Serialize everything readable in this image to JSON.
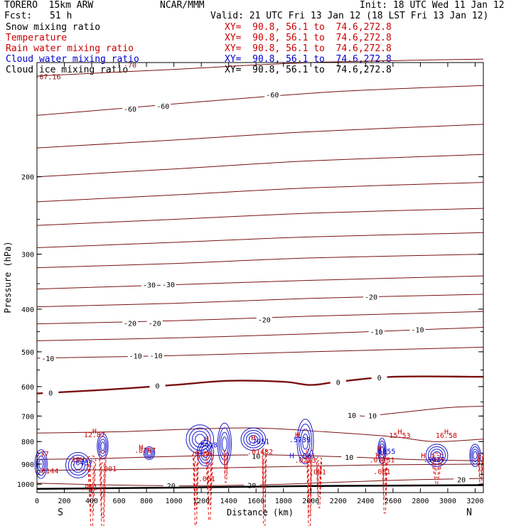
{
  "header": {
    "model": "TORERO  15km ARW",
    "center": "NCAR/MMM",
    "init": "Init: 18 UTC Wed 11 Jan 12",
    "fcst_label": "Fcst:",
    "fcst_value": "51 h",
    "valid": "Valid: 21 UTC Fri 13 Jan 12 (18 LST Fri 13 Jan 12)"
  },
  "legend": [
    {
      "name": "Snow mixing ratio",
      "xy": "XY=  90.8, 56.1 to  74.6,272.8",
      "color": "#000000"
    },
    {
      "name": "Temperature",
      "xy": "XY=  90.8, 56.1 to  74.6,272.8",
      "color": "#cc0000"
    },
    {
      "name": "Rain water mixing ratio",
      "xy": "XY=  90.8, 56.1 to  74.6,272.8",
      "color": "#cc0000"
    },
    {
      "name": "Cloud water mixing ratio",
      "xy": "XY=  90.8, 56.1 to  74.6,272.8",
      "color": "#0000cc"
    },
    {
      "name": "Cloud ice mixing ratio",
      "xy": "XY=  90.8, 56.1 to  74.6,272.8",
      "color": "#000000"
    }
  ],
  "chart_data": {
    "type": "contour cross-section",
    "xlabel": "Distance (km)",
    "ylabel": "Pressure (hPa)",
    "x_ticks": [
      0,
      200,
      400,
      600,
      800,
      1000,
      1200,
      1400,
      1600,
      1800,
      2000,
      2200,
      2400,
      2600,
      2800,
      3000,
      3200
    ],
    "y_ticks": [
      200,
      300,
      400,
      500,
      600,
      700,
      800,
      900,
      1000
    ],
    "xlim": [
      0,
      3260
    ],
    "ylim": [
      1045,
      110
    ],
    "y_scale": "log",
    "x_end_labels": {
      "left": "S",
      "right": "N"
    },
    "temperature_contour_color": "#7a1010",
    "temperature_contours": [
      {
        "p": [
          [
            0,
            118
          ],
          [
            1000,
            114
          ],
          [
            2000,
            110
          ],
          [
            3260,
            108
          ]
        ]
      },
      {
        "p": [
          [
            0,
            145
          ],
          [
            600,
            140
          ],
          [
            1200,
            135
          ],
          [
            2200,
            128
          ],
          [
            3260,
            124
          ]
        ],
        "labels": [
          {
            "x": 680,
            "p": 140,
            "text": "-60"
          },
          {
            "x": 920,
            "p": 138,
            "text": "-60"
          },
          {
            "x": 1720,
            "p": 130,
            "text": "-60"
          }
        ]
      },
      {
        "p": [
          [
            0,
            172
          ],
          [
            1000,
            165
          ],
          [
            2000,
            158
          ],
          [
            3260,
            152
          ]
        ]
      },
      {
        "p": [
          [
            0,
            200
          ],
          [
            1000,
            192
          ],
          [
            2000,
            184
          ],
          [
            3260,
            178
          ]
        ]
      },
      {
        "p": [
          [
            0,
            228
          ],
          [
            1000,
            220
          ],
          [
            2000,
            212
          ],
          [
            3260,
            206
          ]
        ]
      },
      {
        "p": [
          [
            0,
            258
          ],
          [
            1000,
            250
          ],
          [
            2000,
            242
          ],
          [
            3260,
            236
          ]
        ]
      },
      {
        "p": [
          [
            0,
            290
          ],
          [
            1000,
            282
          ],
          [
            2000,
            274
          ],
          [
            3260,
            268
          ]
        ]
      },
      {
        "p": [
          [
            0,
            322
          ],
          [
            1000,
            315
          ],
          [
            2000,
            306
          ],
          [
            3260,
            300
          ]
        ]
      },
      {
        "p": [
          [
            0,
            360
          ],
          [
            1000,
            352
          ],
          [
            2000,
            344
          ],
          [
            3260,
            336
          ]
        ],
        "labels": [
          {
            "x": 820,
            "p": 352,
            "text": "-30"
          },
          {
            "x": 960,
            "p": 351,
            "text": "-30"
          }
        ]
      },
      {
        "p": [
          [
            0,
            395
          ],
          [
            1000,
            388
          ],
          [
            2000,
            378
          ],
          [
            3260,
            370
          ]
        ],
        "labels": [
          {
            "x": 2440,
            "p": 375,
            "text": "-20"
          }
        ]
      },
      {
        "p": [
          [
            0,
            432
          ],
          [
            1000,
            425
          ],
          [
            2000,
            415
          ],
          [
            3260,
            405
          ]
        ],
        "labels": [
          {
            "x": 680,
            "p": 430,
            "text": "-20"
          },
          {
            "x": 860,
            "p": 430,
            "text": "-20"
          },
          {
            "x": 1660,
            "p": 422,
            "text": "-20"
          }
        ]
      },
      {
        "p": [
          [
            0,
            472
          ],
          [
            1000,
            465
          ],
          [
            2000,
            455
          ],
          [
            3260,
            440
          ]
        ],
        "labels": [
          {
            "x": 2480,
            "p": 450,
            "text": "-10"
          },
          {
            "x": 2780,
            "p": 445,
            "text": "-10"
          }
        ]
      },
      {
        "p": [
          [
            0,
            517
          ],
          [
            1000,
            510
          ],
          [
            2000,
            500
          ],
          [
            3260,
            488
          ]
        ],
        "labels": [
          {
            "x": 80,
            "p": 517,
            "text": "-10"
          },
          {
            "x": 720,
            "p": 511,
            "text": "-10"
          },
          {
            "x": 870,
            "p": 510,
            "text": "-10"
          }
        ]
      },
      {
        "p": [
          [
            0,
            622
          ],
          [
            500,
            610
          ],
          [
            1000,
            595
          ],
          [
            1400,
            582
          ],
          [
            1800,
            585
          ],
          [
            2000,
            595
          ],
          [
            2200,
            585
          ],
          [
            2600,
            570
          ],
          [
            3260,
            570
          ]
        ],
        "bold": true,
        "labels": [
          {
            "x": 100,
            "p": 620,
            "text": "0"
          },
          {
            "x": 880,
            "p": 597,
            "text": "0"
          },
          {
            "x": 2200,
            "p": 586,
            "text": "0"
          },
          {
            "x": 2500,
            "p": 572,
            "text": "0"
          }
        ]
      },
      {
        "p": [
          [
            2250,
            695
          ],
          [
            2400,
            700
          ],
          [
            2600,
            690
          ],
          [
            3000,
            670
          ],
          [
            3260,
            665
          ]
        ],
        "labels": [
          {
            "x": 2300,
            "p": 697,
            "text": "10"
          },
          {
            "x": 2450,
            "p": 698,
            "text": "10"
          }
        ]
      },
      {
        "p": [
          [
            0,
            765
          ],
          [
            600,
            760
          ],
          [
            1100,
            750
          ],
          [
            1600,
            745
          ],
          [
            2100,
            760
          ],
          [
            2600,
            780
          ],
          [
            2900,
            800
          ],
          [
            3260,
            790
          ]
        ]
      },
      {
        "p": [
          [
            0,
            878
          ],
          [
            400,
            875
          ],
          [
            800,
            868
          ],
          [
            1300,
            860
          ],
          [
            1700,
            858
          ],
          [
            2000,
            862
          ],
          [
            2400,
            870
          ],
          [
            2800,
            880
          ],
          [
            3260,
            885
          ]
        ],
        "labels": [
          {
            "x": 1600,
            "p": 862,
            "text": "10"
          },
          {
            "x": 2280,
            "p": 868,
            "text": "10"
          }
        ]
      },
      {
        "p": [
          [
            0,
            930
          ],
          [
            800,
            925
          ],
          [
            1600,
            915
          ],
          [
            2400,
            905
          ],
          [
            3260,
            900
          ]
        ]
      },
      {
        "p": [
          [
            0,
            995
          ],
          [
            600,
            1005
          ],
          [
            1200,
            1008
          ],
          [
            1800,
            1000
          ],
          [
            2600,
            980
          ],
          [
            3260,
            970
          ]
        ],
        "labels": [
          {
            "x": 980,
            "p": 1006,
            "text": "20"
          },
          {
            "x": 1570,
            "p": 1005,
            "text": "20"
          },
          {
            "x": 3100,
            "p": 975,
            "text": "20"
          }
        ]
      }
    ],
    "cloud_water_cells": [
      {
        "x": 480,
        "p": 820,
        "w": 80,
        "h": 80
      },
      {
        "x": 30,
        "p": 900,
        "w": 90,
        "h": 90
      },
      {
        "x": 300,
        "p": 905,
        "w": 180,
        "h": 80
      },
      {
        "x": 820,
        "p": 850,
        "w": 80,
        "h": 40
      },
      {
        "x": 1190,
        "p": 790,
        "w": 200,
        "h": 90
      },
      {
        "x": 1230,
        "p": 850,
        "w": 120,
        "h": 80
      },
      {
        "x": 1370,
        "p": 810,
        "w": 100,
        "h": 130
      },
      {
        "x": 1580,
        "p": 790,
        "w": 180,
        "h": 70
      },
      {
        "x": 1960,
        "p": 800,
        "w": 120,
        "h": 140
      },
      {
        "x": 2520,
        "p": 840,
        "w": 60,
        "h": 80
      },
      {
        "x": 2920,
        "p": 860,
        "w": 160,
        "h": 70
      },
      {
        "x": 3200,
        "p": 860,
        "w": 80,
        "h": 70
      }
    ],
    "rain_water_cells": [
      {
        "x": 400,
        "p": 950,
        "w": 60,
        "h": 220
      },
      {
        "x": 480,
        "p": 940,
        "w": 50,
        "h": 260
      },
      {
        "x": 1160,
        "p": 930,
        "w": 40,
        "h": 220
      },
      {
        "x": 1260,
        "p": 930,
        "w": 50,
        "h": 200
      },
      {
        "x": 1380,
        "p": 880,
        "w": 30,
        "h": 90
      },
      {
        "x": 1660,
        "p": 920,
        "w": 30,
        "h": 240
      },
      {
        "x": 1990,
        "p": 930,
        "w": 40,
        "h": 260
      },
      {
        "x": 2060,
        "p": 930,
        "w": 40,
        "h": 150
      },
      {
        "x": 2540,
        "p": 920,
        "w": 40,
        "h": 180
      },
      {
        "x": 2920,
        "p": 890,
        "w": 90,
        "h": 90
      },
      {
        "x": 3240,
        "p": 890,
        "w": 40,
        "h": 90
      }
    ],
    "annotations": [
      {
        "x": 420,
        "p": 768,
        "text": "H",
        "color": "#cc0000"
      },
      {
        "x": 420,
        "p": 782,
        "text": "12.87",
        "color": "#cc0000"
      },
      {
        "x": 2650,
        "p": 770,
        "text": "H",
        "color": "#cc0000"
      },
      {
        "x": 2650,
        "p": 785,
        "text": "15.53",
        "color": "#cc0000"
      },
      {
        "x": 2990,
        "p": 770,
        "text": "H",
        "color": "#cc0000"
      },
      {
        "x": 2990,
        "p": 785,
        "text": "16.58",
        "color": "#cc0000"
      },
      {
        "x": 760,
        "p": 835,
        "text": "H",
        "color": "#cc0000"
      },
      {
        "x": 790,
        "p": 848,
        "text": ".8767",
        "color": "#cc0000"
      },
      {
        "x": 1240,
        "p": 800,
        "text": "H",
        "color": "#cc0000"
      },
      {
        "x": 1240,
        "p": 825,
        "text": ".5418",
        "color": "#0000cc"
      },
      {
        "x": 1200,
        "p": 862,
        "text": ".0186",
        "color": "#cc0000"
      },
      {
        "x": 1580,
        "p": 795,
        "text": "H",
        "color": "#cc0000"
      },
      {
        "x": 1620,
        "p": 810,
        "text": ".7051",
        "color": "#0000cc"
      },
      {
        "x": 1630,
        "p": 855,
        "text": ".01482",
        "color": "#cc0000"
      },
      {
        "x": 1900,
        "p": 783,
        "text": "H",
        "color": "#cc0000"
      },
      {
        "x": 1920,
        "p": 802,
        "text": ".5739",
        "color": "#0000cc"
      },
      {
        "x": 1940,
        "p": 873,
        "text": "H .001",
        "color": "#0000cc"
      },
      {
        "x": 1960,
        "p": 893,
        "text": ".0253",
        "color": "#cc0000"
      },
      {
        "x": 2050,
        "p": 950,
        "text": ".001",
        "color": "#cc0000"
      },
      {
        "x": 2500,
        "p": 840,
        "text": "H",
        "color": "#cc0000"
      },
      {
        "x": 2540,
        "p": 853,
        "text": ".6055",
        "color": "#0000cc"
      },
      {
        "x": 2490,
        "p": 872,
        "text": "H",
        "color": "#cc0000"
      },
      {
        "x": 2520,
        "p": 892,
        "text": ".01131",
        "color": "#cc0000"
      },
      {
        "x": 2520,
        "p": 948,
        "text": ".001",
        "color": "#cc0000"
      },
      {
        "x": 2820,
        "p": 873,
        "text": "H",
        "color": "#cc0000"
      },
      {
        "x": 2900,
        "p": 890,
        "text": ".5627",
        "color": "#0000cc"
      },
      {
        "x": 40,
        "p": 865,
        "text": ".77",
        "color": "#cc0000"
      },
      {
        "x": 300,
        "p": 890,
        "text": "10H",
        "color": "#cc0000"
      },
      {
        "x": 330,
        "p": 905,
        "text": ".6457",
        "color": "#0000cc"
      },
      {
        "x": 80,
        "p": 945,
        "text": ".0144",
        "color": "#cc0000"
      },
      {
        "x": 520,
        "p": 935,
        "text": ".001",
        "color": "#cc0000"
      },
      {
        "x": 1240,
        "p": 985,
        "text": ".001",
        "color": "#cc0000"
      },
      {
        "x": 380,
        "p": 1030,
        "text": ".001",
        "color": "#cc0000"
      },
      {
        "x": 680,
        "p": 113,
        "text": "-70",
        "color": "#7a1010"
      },
      {
        "x": 80,
        "p": 120,
        "text": "-67.16",
        "color": "#7a1010"
      }
    ],
    "ground": [
      [
        0,
        1025
      ],
      [
        1000,
        1018
      ],
      [
        2000,
        1010
      ],
      [
        3260,
        1005
      ]
    ]
  }
}
